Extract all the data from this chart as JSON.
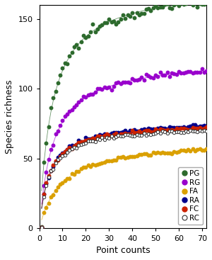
{
  "title": "",
  "xlabel": "Point counts",
  "ylabel": "Species richness",
  "xlim": [
    0,
    72
  ],
  "ylim": [
    0,
    160
  ],
  "xticks": [
    0,
    10,
    20,
    30,
    40,
    50,
    60,
    70
  ],
  "yticks": [
    0,
    50,
    100,
    150
  ],
  "series": {
    "PG": {
      "color": "#2d6a2d",
      "filled": true,
      "asymptote": 175,
      "k": 5.5,
      "noise": 1.5
    },
    "RG": {
      "color": "#9900cc",
      "filled": true,
      "asymptote": 122,
      "k": 6.0,
      "noise": 1.0
    },
    "FA": {
      "color": "#daa000",
      "filled": true,
      "asymptote": 64,
      "k": 9.5,
      "noise": 0.6
    },
    "RA": {
      "color": "#00008b",
      "filled": true,
      "asymptote": 78,
      "k": 4.5,
      "noise": 0.6
    },
    "FC": {
      "color": "#cc2200",
      "filled": true,
      "asymptote": 76,
      "k": 4.2,
      "noise": 0.6
    },
    "RC": {
      "color": "#333333",
      "filled": false,
      "asymptote": 74,
      "k": 4.2,
      "noise": 0.6
    }
  },
  "legend_order": [
    "PG",
    "RG",
    "FA",
    "RA",
    "FC",
    "RC"
  ],
  "n_points": 72,
  "background_color": "#ffffff",
  "marker_size": 3.2,
  "line_color": "#555555",
  "linewidth": 0.6
}
